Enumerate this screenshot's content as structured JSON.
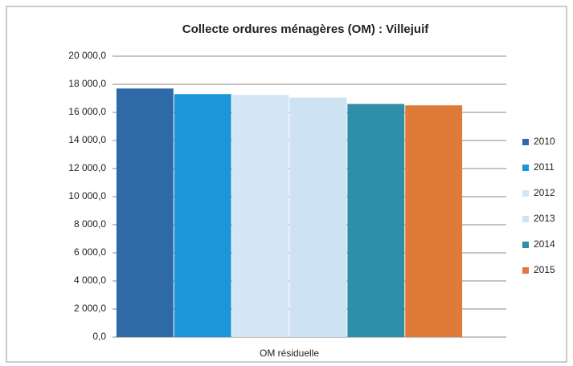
{
  "chart_data": {
    "type": "bar",
    "title": "Collecte ordures ménagères (OM) : Villejuif",
    "categories": [
      "OM résiduelle"
    ],
    "series": [
      {
        "name": "2010",
        "color": "#2e6aa8",
        "values": [
          17700
        ]
      },
      {
        "name": "2011",
        "color": "#1b96da",
        "values": [
          17300
        ]
      },
      {
        "name": "2012",
        "color": "#d4e5f4",
        "values": [
          17250
        ]
      },
      {
        "name": "2013",
        "color": "#cde2f3",
        "values": [
          17050
        ]
      },
      {
        "name": "2014",
        "color": "#2f8ea8",
        "values": [
          16600
        ]
      },
      {
        "name": "2015",
        "color": "#e07a38",
        "values": [
          16500
        ]
      }
    ],
    "ylim": [
      0,
      20000
    ],
    "yticks": [
      {
        "value": 0,
        "label": "0,0"
      },
      {
        "value": 2000,
        "label": "2 000,0"
      },
      {
        "value": 4000,
        "label": "4 000,0"
      },
      {
        "value": 6000,
        "label": "6 000,0"
      },
      {
        "value": 8000,
        "label": "8 000,0"
      },
      {
        "value": 10000,
        "label": "10 000,0"
      },
      {
        "value": 12000,
        "label": "12 000,0"
      },
      {
        "value": 14000,
        "label": "14 000,0"
      },
      {
        "value": 16000,
        "label": "16 000,0"
      },
      {
        "value": 18000,
        "label": "18 000,0"
      },
      {
        "value": 20000,
        "label": "20 000,0"
      }
    ],
    "grid": true,
    "legend": "right"
  }
}
